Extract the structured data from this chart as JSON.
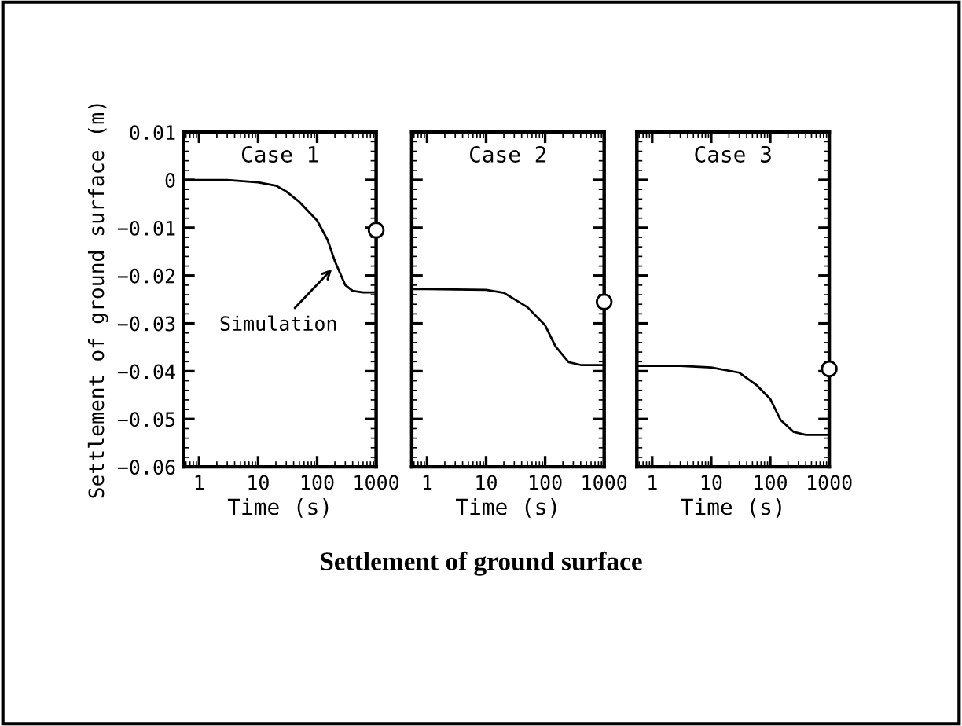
{
  "chart_data": [
    {
      "type": "line",
      "title": "Case 1",
      "xlabel": "Time (s)",
      "ylabel": "Settlement of ground surface (m)",
      "log": "x",
      "xlim": [
        0.55,
        1000
      ],
      "xticks": [
        1,
        10,
        100,
        1000
      ],
      "ylim": [
        -0.06,
        0.01
      ],
      "yticks": [
        {
          "value": 0.01,
          "label": "0.01"
        },
        0,
        {
          "value": -0.01,
          "label": "−0.01"
        },
        {
          "value": -0.02,
          "label": "−0.02"
        },
        {
          "value": -0.03,
          "label": "−0.03"
        },
        {
          "value": -0.04,
          "label": "−0.04"
        },
        {
          "value": -0.05,
          "label": "−0.05"
        },
        {
          "value": -0.06,
          "label": "−0.06"
        }
      ],
      "grid": false,
      "legend": false,
      "annotations": [
        {
          "text": "Simulation",
          "x": 200,
          "y": -0.018
        },
        "Settlement of ground surface"
      ],
      "series": [
        {
          "color": "#000000",
          "x": [
            0.55,
            1,
            3,
            10,
            20,
            30,
            50,
            100,
            150,
            200,
            300,
            400,
            600,
            1000
          ],
          "values": [
            0,
            0,
            0,
            -0.0005,
            -0.0012,
            -0.0024,
            -0.0046,
            -0.0085,
            -0.0125,
            -0.017,
            -0.022,
            -0.0232,
            -0.0235,
            -0.0235
          ]
        },
        {
          "type": "scatter",
          "marker": "circle",
          "color": "#000000",
          "x": [
            1000
          ],
          "values": [
            -0.0105
          ]
        }
      ]
    },
    {
      "type": "line",
      "title": "Case 2",
      "xlabel": "Time (s)",
      "log": "x",
      "xlim": [
        0.55,
        1000
      ],
      "xticks": [
        1,
        10,
        100,
        1000
      ],
      "ylim": [
        -0.06,
        0.01
      ],
      "tick_labels": "x",
      "grid": false,
      "legend": false,
      "series": [
        {
          "color": "#000000",
          "x": [
            0.55,
            1,
            3,
            10,
            20,
            50,
            100,
            150,
            250,
            400,
            1000
          ],
          "values": [
            -0.0228,
            -0.0228,
            -0.0229,
            -0.023,
            -0.0236,
            -0.0266,
            -0.0304,
            -0.0348,
            -0.0381,
            -0.0387,
            -0.0387
          ]
        },
        {
          "type": "scatter",
          "marker": "circle",
          "color": "#000000",
          "x": [
            1000
          ],
          "values": [
            -0.0255
          ]
        }
      ]
    },
    {
      "type": "line",
      "title": "Case 3",
      "xlabel": "Time (s)",
      "log": "x",
      "xlim": [
        0.55,
        1000
      ],
      "xticks": [
        1,
        10,
        100,
        1000
      ],
      "ylim": [
        -0.06,
        0.01
      ],
      "tick_labels": "x",
      "grid": false,
      "legend": false,
      "series": [
        {
          "color": "#000000",
          "x": [
            0.55,
            1,
            3,
            10,
            30,
            60,
            100,
            150,
            250,
            400,
            1000
          ],
          "values": [
            -0.0389,
            -0.0389,
            -0.0389,
            -0.0392,
            -0.0403,
            -0.043,
            -0.0458,
            -0.0502,
            -0.0527,
            -0.0533,
            -0.0533
          ]
        },
        {
          "type": "scatter",
          "marker": "circle",
          "color": "#000000",
          "x": [
            1000
          ],
          "values": [
            -0.0395
          ]
        }
      ]
    }
  ]
}
